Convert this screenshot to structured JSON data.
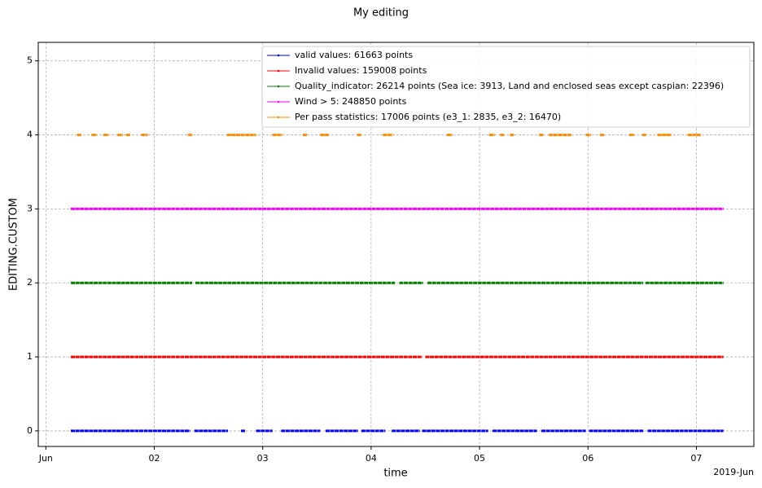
{
  "chart_data": {
    "type": "line",
    "title": "My editing",
    "xlabel": "time",
    "ylabel": "EDITING.CUSTOM",
    "x_offset_label": "2019-Jun",
    "xlim": [
      0.93,
      7.53
    ],
    "ylim": [
      -0.21,
      5.25
    ],
    "xticks": [
      {
        "value": 1,
        "label": "Jun"
      },
      {
        "value": 2,
        "label": "02"
      },
      {
        "value": 3,
        "label": "03"
      },
      {
        "value": 4,
        "label": "04"
      },
      {
        "value": 5,
        "label": "05"
      },
      {
        "value": 6,
        "label": "06"
      },
      {
        "value": 7,
        "label": "07"
      }
    ],
    "yticks": [
      0,
      1,
      2,
      3,
      4,
      5
    ],
    "grid": true,
    "legend": "upper right",
    "series": [
      {
        "name": "valid values: 61663 points",
        "color": "#0000ff",
        "x": [
          1.23,
          2.33,
          2.35,
          2.37,
          2.68,
          2.74,
          2.8,
          2.84,
          2.89,
          2.94,
          3.09,
          3.13,
          3.17,
          3.53,
          3.55,
          3.58,
          3.88,
          3.89,
          3.91,
          4.13,
          4.16,
          4.19,
          4.45,
          4.46,
          4.47,
          5.08,
          5.1,
          5.12,
          5.53,
          5.55,
          5.57,
          5.98,
          6.0,
          6.01,
          6.51,
          6.53,
          6.55,
          7.25
        ],
        "values": [
          0,
          0,
          null,
          0,
          0,
          null,
          0,
          0,
          null,
          0,
          0,
          null,
          0,
          0,
          null,
          0,
          0,
          null,
          0,
          0,
          null,
          0,
          0,
          null,
          0,
          0,
          null,
          0,
          0,
          null,
          0,
          0,
          null,
          0,
          0,
          null,
          0,
          0
        ]
      },
      {
        "name": "Invalid values: 159008 points",
        "color": "#ff0000",
        "x": [
          1.23,
          4.47,
          4.48,
          4.5,
          7.25
        ],
        "values": [
          1,
          1,
          null,
          1,
          1
        ]
      },
      {
        "name": "Quality_indicator: 26214 points (Sea ice: 3913, Land and enclosed seas except caspian: 22396)",
        "color": "#008000",
        "x": [
          1.23,
          2.35,
          2.36,
          2.38,
          4.22,
          4.24,
          4.26,
          4.48,
          4.5,
          4.52,
          6.51,
          6.52,
          6.53,
          7.25
        ],
        "values": [
          2,
          2,
          null,
          2,
          2,
          null,
          2,
          2,
          null,
          2,
          2,
          null,
          2,
          2
        ]
      },
      {
        "name": "Wind > 5: 248850 points",
        "color": "#ff00ff",
        "x": [
          1.23,
          7.25
        ],
        "values": [
          3,
          3
        ]
      },
      {
        "name": "Per pass statistics: 17006 points (e3_1: 2835, e3_2: 16470)",
        "color": "#ff8c00",
        "x": [
          1.29,
          1.33,
          1.37,
          1.42,
          1.47,
          1.5,
          1.53,
          1.58,
          1.62,
          1.66,
          1.71,
          1.72,
          1.74,
          1.78,
          1.83,
          1.88,
          1.94,
          2.1,
          2.31,
          2.35,
          2.5,
          2.67,
          2.94,
          3.0,
          3.09,
          3.18,
          3.3,
          3.37,
          3.41,
          3.5,
          3.53,
          3.61,
          3.7,
          3.87,
          3.91,
          4.0,
          4.11,
          4.2,
          4.4,
          4.7,
          4.75,
          4.9,
          5.09,
          5.14,
          5.16,
          5.19,
          5.23,
          5.25,
          5.28,
          5.32,
          5.4,
          5.55,
          5.59,
          5.61,
          5.64,
          5.85,
          5.9,
          5.98,
          6.03,
          6.07,
          6.11,
          6.15,
          6.3,
          6.38,
          6.43,
          6.46,
          6.5,
          6.54,
          6.6,
          6.64,
          6.77,
          6.85,
          6.92,
          7.04
        ],
        "values": [
          4,
          4,
          null,
          4,
          4,
          null,
          4,
          4,
          null,
          4,
          4,
          null,
          4,
          4,
          null,
          4,
          4,
          null,
          4,
          4,
          null,
          4,
          4,
          null,
          4,
          4,
          null,
          4,
          4,
          null,
          4,
          4,
          null,
          4,
          4,
          null,
          4,
          4,
          null,
          4,
          4,
          null,
          4,
          4,
          null,
          4,
          4,
          null,
          4,
          4,
          null,
          4,
          4,
          null,
          4,
          4,
          null,
          4,
          4,
          null,
          4,
          4,
          null,
          4,
          4,
          null,
          4,
          4,
          null,
          4,
          4,
          null,
          4,
          4
        ]
      }
    ]
  }
}
